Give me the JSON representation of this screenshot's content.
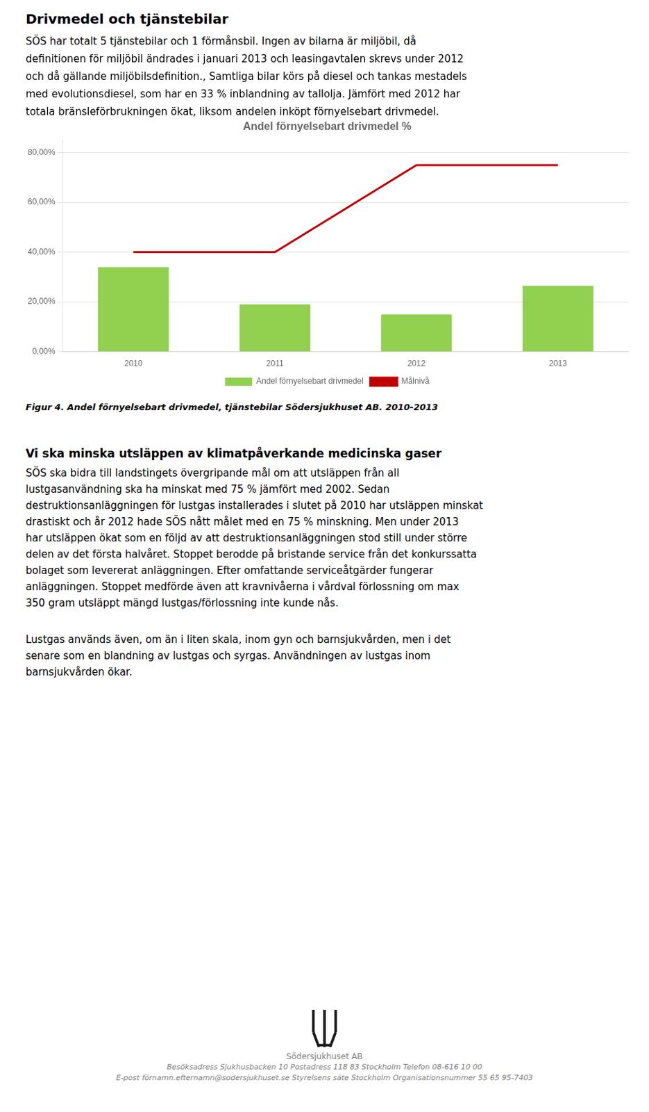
{
  "title": "Drivmedel och tjänstebilar",
  "intro_lines": [
    "SÖS har totalt 5 tjänstebilar och 1 förmånsbil. Ingen av bilarna är miljöbil, då",
    "definitionen för miljöbil ändrades i januari 2013 och leasingavtalen skrevs under 2012",
    "och då gällande miljöbilsdefinition., Samtliga bilar körs på diesel och tankas mestadels",
    "med evolutionsdiesel, som har en 33 % inblandning av tallolja. Jämfört med 2012 har",
    "totala bränsleförbrukningen ökat, liksom andelen inköpt förnyelsebart drivmedel."
  ],
  "figure_caption": "Figur 4. Andel förnyelsebart drivmedel, tjänstebilar Södersjukhuset AB. 2010-2013",
  "section2_bold": "Vi ska minska utsläppen av klimatpåverkande medicinska gaser",
  "section2_lines": [
    "SÖS ska bidra till landstingets övergripande mål om att utsläppen från all",
    "lustgasanvändning ska ha minskat med 75 % jämfört med 2002. Sedan",
    "destruktionsanläggningen för lustgas installerades i slutet på 2010 har utsläppen minskat",
    "drastiskt och år 2012 hade SÖS nått målet med en 75 % minskning. Men under 2013",
    "har utsläppen ökat som en följd av att destruktionsanläggningen stod still under större",
    "delen av det första halvåret. Stoppet berodde på bristande service från det konkurssatta",
    "bolaget som levererat anläggningen. Efter omfattande serviceåtgärder fungerar",
    "anläggningen. Stoppet medförde även att kravnivåerna i vårdval förlossning om max",
    "350 gram utsläppt mängd lustgas/förlossning inte kunde nås."
  ],
  "section3_lines": [
    "Lustgas används även, om än i liten skala, inom gyn och barnsjukvården, men i det",
    "senare som en blandning av lustgas och syrgas. Användningen av lustgas inom",
    "barnsjukvården ökar."
  ],
  "footer_name": "Södersjukhuset AB",
  "footer_address": "Besöksadress Sjukhusbacken 10 Postadress 118 83 Stockholm Telefon 08-616 10 00",
  "footer_email": "E-post förnamn.efternamn@sodersjukhuset.se Styrelsens säte Stockholm Organisationsnummer 55 65 95-7403",
  "chart_data": {
    "type": "bar",
    "title": "Andel förnyelsebart drivmedel %",
    "categories": [
      "2010",
      "2011",
      "2012",
      "2013"
    ],
    "series": [
      {
        "name": "Andel förnyelsebart drivmedel",
        "type": "bar",
        "color": "#92D050",
        "values": [
          0.34,
          0.19,
          0.15,
          0.265
        ]
      },
      {
        "name": "Målnivå",
        "type": "line",
        "color": "#C00000",
        "values": [
          0.4,
          0.4,
          0.75,
          0.75
        ]
      }
    ],
    "ylim": [
      0.0,
      0.85
    ],
    "yticks": [
      {
        "value": 0.0,
        "label": "0,00%"
      },
      {
        "value": 0.2,
        "label": "20,00%"
      },
      {
        "value": 0.4,
        "label": "40,00%"
      },
      {
        "value": 0.6,
        "label": "60,00%"
      },
      {
        "value": 0.8,
        "label": "80,00%"
      }
    ],
    "grid": true,
    "legend": "bottom"
  }
}
